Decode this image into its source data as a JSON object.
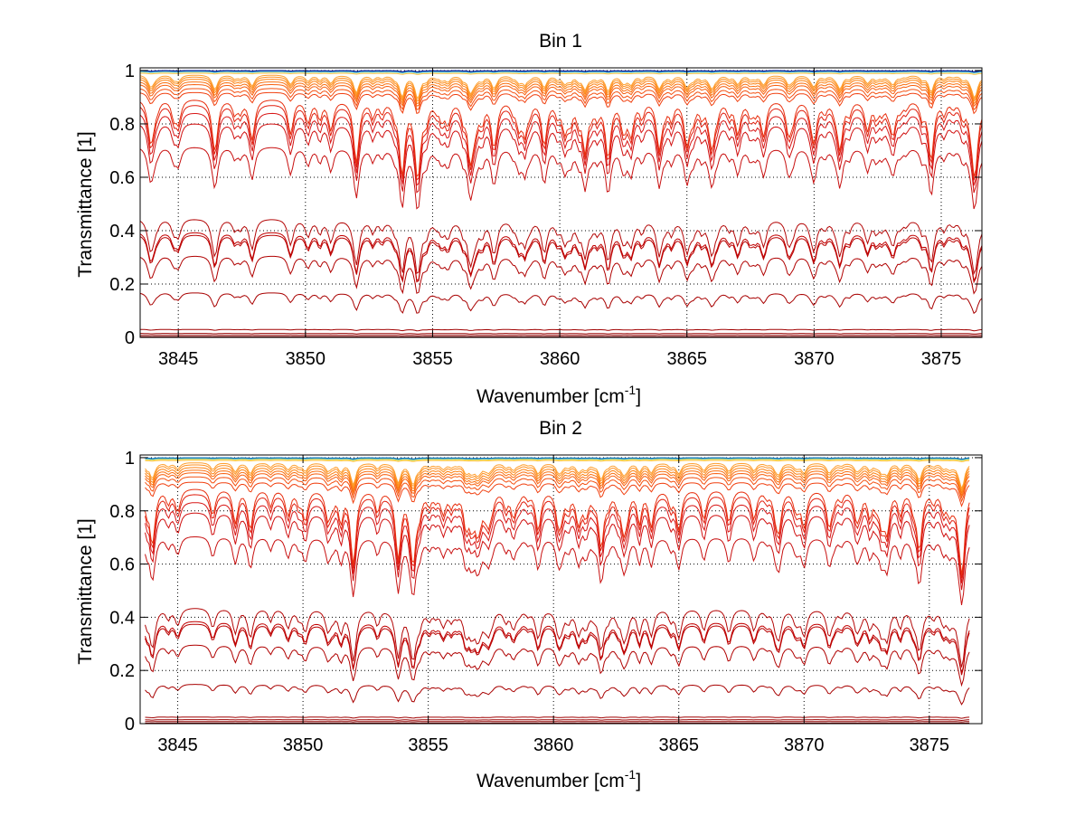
{
  "chart_data": [
    {
      "type": "line",
      "title": "Bin 1",
      "xlabel": "Wavenumber [cm",
      "xlabel_sup": "-1",
      "xlabel_end": "]",
      "ylabel": "Transmittance [1]",
      "xlim": [
        3843.5,
        3876.6
      ],
      "ylim": [
        0,
        1.01
      ],
      "grid": true,
      "x_range_data": [
        3843.5,
        3876.6
      ],
      "xticks": [
        3845,
        3850,
        3855,
        3860,
        3865,
        3870,
        3875
      ],
      "xtick_labels": [
        "3845",
        "3850",
        "3855",
        "3860",
        "3865",
        "3870",
        "3875"
      ],
      "yticks": [
        0,
        0.2,
        0.4,
        0.6,
        0.8,
        1
      ],
      "ytick_labels": [
        "0",
        "0.2",
        "0.4",
        "0.6",
        "0.8",
        "1"
      ],
      "series_baselines": [
        0.002,
        0.008,
        0.015,
        0.03,
        0.17,
        0.31,
        0.39,
        0.4,
        0.45,
        0.72,
        0.81,
        0.85,
        0.88,
        0.9,
        0.92,
        0.935,
        0.95,
        0.96,
        0.97,
        0.978,
        0.985,
        0.99,
        0.994,
        0.997,
        0.999,
        1.0
      ],
      "series_colors": [
        "#800000",
        "#8a0000",
        "#990000",
        "#a00000",
        "#a80000",
        "#b00000",
        "#b80000",
        "#c00000",
        "#b40808",
        "#c81010",
        "#d01010",
        "#d81818",
        "#e02010",
        "#e83010",
        "#f04010",
        "#f45010",
        "#f86010",
        "#fa7010",
        "#fc8010",
        "#fd9020",
        "#fea030",
        "#ffc040",
        "#a0e0c0",
        "#40b0e0",
        "#1060c0",
        "#001090"
      ],
      "lines": [
        3843.9,
        3845.0,
        3846.4,
        3847.9,
        3849.4,
        3850.1,
        3851.0,
        3852.0,
        3853.8,
        3854.4,
        3855.6,
        3856.5,
        3857.4,
        3858.4,
        3859.4,
        3860.2,
        3861.0,
        3861.9,
        3862.8,
        3863.9,
        3865.0,
        3866.0,
        3867.0,
        3868.0,
        3869.0,
        3870.0,
        3871.0,
        3872.1,
        3873.1,
        3874.6,
        3876.3
      ],
      "line_strengths": [
        0.5,
        0.3,
        0.35,
        0.55,
        0.35,
        0.3,
        0.4,
        0.9,
        1.0,
        1.0,
        0.3,
        0.35,
        0.4,
        0.35,
        0.45,
        0.4,
        0.45,
        0.8,
        0.45,
        0.5,
        0.6,
        0.4,
        0.45,
        0.4,
        0.45,
        0.55,
        0.5,
        0.4,
        0.45,
        0.85,
        1.0
      ]
    },
    {
      "type": "line",
      "title": "Bin 2",
      "xlabel": "Wavenumber [cm",
      "xlabel_sup": "-1",
      "xlabel_end": "]",
      "ylabel": "Transmittance [1]",
      "xlim": [
        3843.5,
        3877.1
      ],
      "ylim": [
        0,
        1.01
      ],
      "grid": true,
      "x_range_data": [
        3843.7,
        3876.6
      ],
      "xticks": [
        3845,
        3850,
        3855,
        3860,
        3865,
        3870,
        3875
      ],
      "xtick_labels": [
        "3845",
        "3850",
        "3855",
        "3860",
        "3865",
        "3870",
        "3875"
      ],
      "yticks": [
        0,
        0.2,
        0.4,
        0.6,
        0.8,
        1
      ],
      "ytick_labels": [
        "0",
        "0.2",
        "0.4",
        "0.6",
        "0.8",
        "1"
      ],
      "series_baselines": [
        0.002,
        0.008,
        0.015,
        0.025,
        0.15,
        0.3,
        0.38,
        0.39,
        0.44,
        0.71,
        0.8,
        0.84,
        0.87,
        0.89,
        0.91,
        0.93,
        0.945,
        0.955,
        0.965,
        0.975,
        0.983,
        0.99,
        0.994,
        0.997,
        0.999,
        1.0
      ],
      "series_colors": [
        "#800000",
        "#8a0000",
        "#990000",
        "#a00000",
        "#a80000",
        "#b00000",
        "#b80000",
        "#c00000",
        "#b40808",
        "#c81010",
        "#d01010",
        "#d81818",
        "#e02010",
        "#e83010",
        "#f04010",
        "#f45010",
        "#f86010",
        "#fa7010",
        "#fc8010",
        "#fd9020",
        "#fea030",
        "#ffc040",
        "#e0e040",
        "#60c0e0",
        "#2090d0",
        "#1070b0"
      ],
      "lines": [
        3844.0,
        3845.0,
        3846.4,
        3847.9,
        3849.4,
        3850.1,
        3851.0,
        3852.0,
        3853.8,
        3854.4,
        3855.6,
        3856.5,
        3857.4,
        3858.4,
        3859.4,
        3860.2,
        3861.0,
        3861.9,
        3862.8,
        3863.9,
        3865.0,
        3866.0,
        3867.0,
        3868.0,
        3869.0,
        3870.0,
        3871.0,
        3872.1,
        3873.1,
        3874.6,
        3876.3
      ],
      "line_strengths": [
        0.6,
        0.3,
        0.35,
        0.55,
        0.35,
        0.3,
        0.4,
        0.9,
        1.0,
        1.0,
        0.3,
        0.35,
        0.4,
        0.35,
        0.45,
        0.45,
        0.45,
        0.8,
        0.45,
        0.5,
        0.55,
        0.4,
        0.45,
        0.4,
        0.45,
        0.5,
        0.5,
        0.4,
        0.45,
        0.85,
        1.0
      ]
    }
  ]
}
